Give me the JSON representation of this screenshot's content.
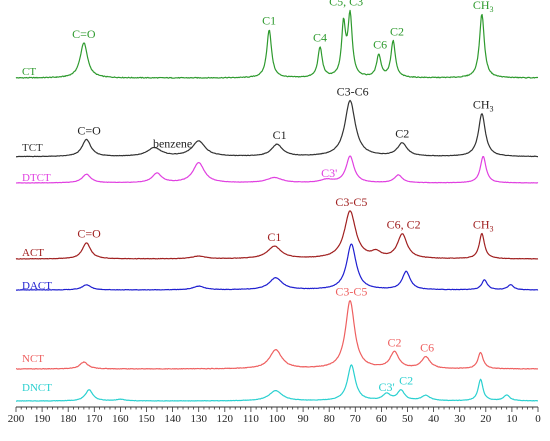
{
  "chart_data": {
    "type": "line",
    "title": "",
    "xlabel": "",
    "ylabel": "",
    "xlim": [
      200,
      0
    ],
    "x_reversed": true,
    "x_ticks": [
      200,
      190,
      180,
      170,
      160,
      150,
      140,
      130,
      120,
      110,
      100,
      90,
      80,
      70,
      60,
      50,
      40,
      30,
      20,
      10,
      0
    ],
    "grid": false,
    "legend": "none",
    "series": [
      {
        "name": "CT",
        "color": "#2e9a2e",
        "baseline": 0.0,
        "noise": 0.012,
        "peaks": [
          {
            "x": 174,
            "h": 0.55,
            "w": 1.7
          },
          {
            "x": 103,
            "h": 0.75,
            "w": 1.1
          },
          {
            "x": 83.5,
            "h": 0.47,
            "w": 1.0
          },
          {
            "x": 74.5,
            "h": 0.8,
            "w": 0.9
          },
          {
            "x": 72,
            "h": 0.95,
            "w": 1.0
          },
          {
            "x": 61,
            "h": 0.35,
            "w": 1.0
          },
          {
            "x": 55.5,
            "h": 0.57,
            "w": 1.0
          },
          {
            "x": 21.5,
            "h": 1.0,
            "w": 1.1
          }
        ]
      },
      {
        "name": "TCT",
        "color": "#333333",
        "baseline": 0.04,
        "noise": 0.008,
        "peaks": [
          {
            "x": 173,
            "h": 0.3,
            "w": 2.0
          },
          {
            "x": 147,
            "h": 0.15,
            "w": 3.2
          },
          {
            "x": 130,
            "h": 0.27,
            "w": 3.0
          },
          {
            "x": 100,
            "h": 0.21,
            "w": 2.5
          },
          {
            "x": 72,
            "h": 0.98,
            "w": 2.4
          },
          {
            "x": 52,
            "h": 0.23,
            "w": 2.2
          },
          {
            "x": 21.5,
            "h": 0.75,
            "w": 1.6
          }
        ]
      },
      {
        "name": "DTCT",
        "color": "#e040e0",
        "baseline": 0.0,
        "noise": 0.008,
        "peaks": [
          {
            "x": 173,
            "h": 0.2,
            "w": 2.0
          },
          {
            "x": 146,
            "h": 0.22,
            "w": 2.2
          },
          {
            "x": 130,
            "h": 0.47,
            "w": 2.6
          },
          {
            "x": 101,
            "h": 0.12,
            "w": 3.5
          },
          {
            "x": 81,
            "h": 0.07,
            "w": 2.8
          },
          {
            "x": 72,
            "h": 0.62,
            "w": 1.8
          },
          {
            "x": 53.5,
            "h": 0.18,
            "w": 1.8
          },
          {
            "x": 21,
            "h": 0.62,
            "w": 1.3
          }
        ]
      },
      {
        "name": "ACT",
        "color": "#a02020",
        "baseline": 0.0,
        "noise": 0.008,
        "peaks": [
          {
            "x": 173,
            "h": 0.3,
            "w": 1.9
          },
          {
            "x": 130,
            "h": 0.05,
            "w": 3.0
          },
          {
            "x": 101,
            "h": 0.23,
            "w": 3.2
          },
          {
            "x": 72,
            "h": 0.88,
            "w": 2.6
          },
          {
            "x": 62,
            "h": 0.1,
            "w": 2.0
          },
          {
            "x": 52,
            "h": 0.45,
            "w": 2.2
          },
          {
            "x": 21.5,
            "h": 0.47,
            "w": 1.2
          }
        ]
      },
      {
        "name": "DACT",
        "color": "#1f1fd0",
        "baseline": 0.0,
        "noise": 0.008,
        "peaks": [
          {
            "x": 173,
            "h": 0.1,
            "w": 2.0
          },
          {
            "x": 130,
            "h": 0.07,
            "w": 2.6
          },
          {
            "x": 100.5,
            "h": 0.23,
            "w": 3.0
          },
          {
            "x": 71.5,
            "h": 0.88,
            "w": 2.2
          },
          {
            "x": 50.5,
            "h": 0.35,
            "w": 1.8
          },
          {
            "x": 20.5,
            "h": 0.19,
            "w": 1.3
          },
          {
            "x": 10.5,
            "h": 0.1,
            "w": 1.3
          }
        ]
      },
      {
        "name": "NCT",
        "color": "#ee6060",
        "baseline": 0.0,
        "noise": 0.008,
        "peaks": [
          {
            "x": 174,
            "h": 0.1,
            "w": 1.9
          },
          {
            "x": 100.5,
            "h": 0.28,
            "w": 2.8
          },
          {
            "x": 72,
            "h": 1.0,
            "w": 2.1
          },
          {
            "x": 55,
            "h": 0.24,
            "w": 2.0
          },
          {
            "x": 43,
            "h": 0.17,
            "w": 2.0
          },
          {
            "x": 22,
            "h": 0.24,
            "w": 1.2
          }
        ]
      },
      {
        "name": "DNCT",
        "color": "#2ad0d0",
        "baseline": 0.0,
        "noise": 0.008,
        "peaks": [
          {
            "x": 172,
            "h": 0.22,
            "w": 1.7
          },
          {
            "x": 160,
            "h": 0.03,
            "w": 2.0
          },
          {
            "x": 100.5,
            "h": 0.2,
            "w": 3.0
          },
          {
            "x": 71.5,
            "h": 0.7,
            "w": 1.8
          },
          {
            "x": 58,
            "h": 0.13,
            "w": 1.8
          },
          {
            "x": 52.5,
            "h": 0.2,
            "w": 1.6
          },
          {
            "x": 43,
            "h": 0.1,
            "w": 2.0
          },
          {
            "x": 22,
            "h": 0.42,
            "w": 1.1
          },
          {
            "x": 12,
            "h": 0.11,
            "w": 1.5
          }
        ]
      }
    ],
    "annotations": [
      {
        "series": "CT",
        "text": "C=O",
        "x": 174,
        "color": "#2e9a2e"
      },
      {
        "series": "CT",
        "text": "C1",
        "x": 103,
        "color": "#2e9a2e"
      },
      {
        "series": "CT",
        "text": "C4",
        "x": 83.5,
        "color": "#2e9a2e"
      },
      {
        "series": "CT",
        "text": "C5, C3",
        "x": 73.5,
        "color": "#2e9a2e"
      },
      {
        "series": "CT",
        "text": "C6",
        "x": 60.5,
        "color": "#2e9a2e"
      },
      {
        "series": "CT",
        "text": "C2",
        "x": 54,
        "color": "#2e9a2e"
      },
      {
        "series": "CT",
        "text": "CH3",
        "x": 21,
        "color": "#2e9a2e"
      },
      {
        "series": "TCT",
        "text": "C=O",
        "x": 172,
        "color": "#222222"
      },
      {
        "series": "TCT",
        "text": "benzene",
        "x": 140,
        "color": "#222222"
      },
      {
        "series": "TCT",
        "text": "C1",
        "x": 99,
        "color": "#222222"
      },
      {
        "series": "TCT",
        "text": "C3-C6",
        "x": 71,
        "color": "#222222"
      },
      {
        "series": "TCT",
        "text": "C2",
        "x": 52,
        "color": "#222222"
      },
      {
        "series": "TCT",
        "text": "CH3",
        "x": 21,
        "color": "#222222"
      },
      {
        "series": "DTCT",
        "text": "C3'",
        "x": 80,
        "color": "#e040e0"
      },
      {
        "series": "ACT",
        "text": "C=O",
        "x": 172,
        "color": "#a02020"
      },
      {
        "series": "ACT",
        "text": "C1",
        "x": 101,
        "color": "#a02020"
      },
      {
        "series": "ACT",
        "text": "C3-C5",
        "x": 71.5,
        "color": "#a02020"
      },
      {
        "series": "ACT",
        "text": "C6, C2",
        "x": 51.5,
        "color": "#a02020"
      },
      {
        "series": "ACT",
        "text": "CH3",
        "x": 21,
        "color": "#a02020"
      },
      {
        "series": "NCT",
        "text": "C3-C5",
        "x": 71.5,
        "color": "#ee6060"
      },
      {
        "series": "NCT",
        "text": "C2",
        "x": 55,
        "color": "#ee6060"
      },
      {
        "series": "NCT",
        "text": "C6",
        "x": 42.5,
        "color": "#ee6060"
      },
      {
        "series": "DNCT",
        "text": "C3'",
        "x": 58,
        "color": "#2ad0d0"
      },
      {
        "series": "DNCT",
        "text": "C2",
        "x": 50.5,
        "color": "#2ad0d0"
      }
    ]
  }
}
